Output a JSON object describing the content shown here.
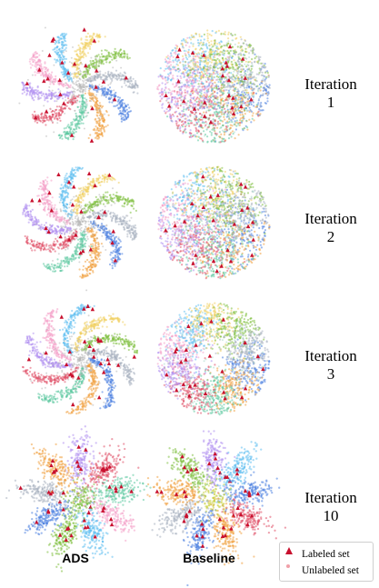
{
  "chart_data": {
    "type": "scatter",
    "title": "",
    "methods": [
      "ADS",
      "Baseline"
    ],
    "iterations": [
      {
        "label": "Iteration\n1",
        "number": 1
      },
      {
        "label": "Iteration\n2",
        "number": 2
      },
      {
        "label": "Iteration\n3",
        "number": 3
      },
      {
        "label": "Iteration\n10",
        "number": 10
      }
    ],
    "legend": {
      "placement": "bottom-right",
      "entries": [
        {
          "name": "Labeled set",
          "marker": "triangle",
          "color": "#c8102e"
        },
        {
          "name": "Unlabeled set",
          "marker": "dot",
          "color": "#f0a0a8"
        }
      ]
    },
    "class_colors": [
      "#4a7fe0",
      "#f0a040",
      "#5cc8a0",
      "#e05068",
      "#b090f0",
      "#f4a0c8",
      "#60c0f0",
      "#f0d060",
      "#80c040",
      "#a8b0c0"
    ],
    "axes": "none",
    "grid": false
  }
}
